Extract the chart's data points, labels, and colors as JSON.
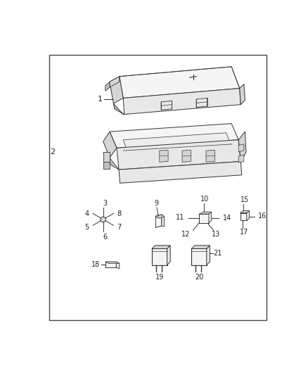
{
  "bg_color": "#ffffff",
  "border_color": "#444444",
  "line_color": "#333333",
  "text_color": "#222222",
  "fig_width": 4.38,
  "fig_height": 5.33,
  "dpi": 100,
  "fill_light": "#f5f5f5",
  "fill_mid": "#e8e8e8",
  "fill_dark": "#d5d5d5",
  "fill_darkest": "#c0c0c0"
}
